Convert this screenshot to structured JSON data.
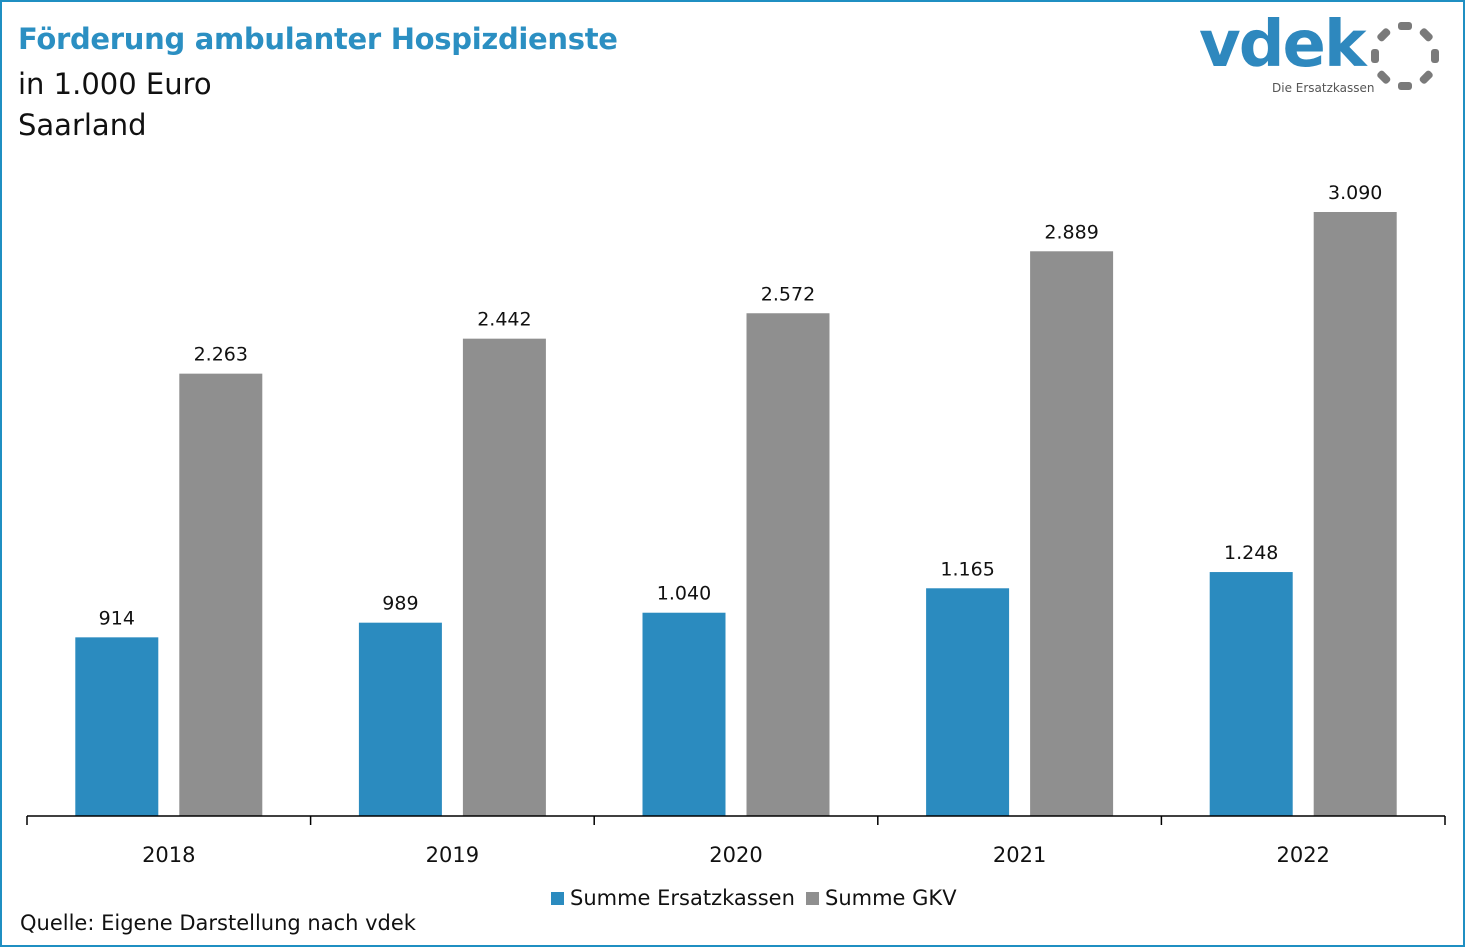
{
  "header": {
    "title": "Förderung ambulanter Hospizdienste",
    "subtitle_unit": "in 1.000 Euro",
    "subtitle_region": "Saarland"
  },
  "logo": {
    "word": "vdek",
    "tagline": "Die Ersatzkassen",
    "icon": "dotted-ring-icon",
    "color": "#2e88be",
    "ring_color": "#7a7a7a"
  },
  "source": "Quelle: Eigene Darstellung nach vdek",
  "chart_data": {
    "type": "bar",
    "categories": [
      "2018",
      "2019",
      "2020",
      "2021",
      "2022"
    ],
    "series": [
      {
        "name": "Summe Ersatzkassen",
        "color": "#2b8bbf",
        "values": [
          914,
          989,
          1040,
          1165,
          1248
        ],
        "labels": [
          "914",
          "989",
          "1.040",
          "1.165",
          "1.248"
        ]
      },
      {
        "name": "Summe GKV",
        "color": "#8f8f8f",
        "values": [
          2263,
          2442,
          2572,
          2889,
          3090
        ],
        "labels": [
          "2.263",
          "2.442",
          "2.572",
          "2.889",
          "3.090"
        ]
      }
    ],
    "title": "Förderung ambulanter Hospizdienste",
    "xlabel": "",
    "ylabel": "",
    "legend": "bottom-center",
    "grid": false
  }
}
